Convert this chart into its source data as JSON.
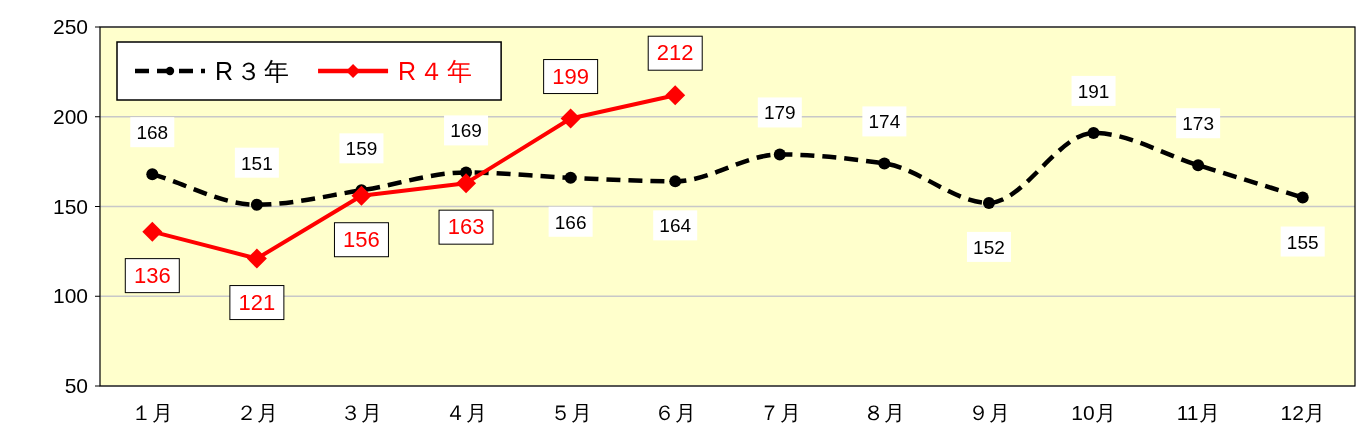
{
  "chart_data": {
    "type": "line",
    "categories": [
      "１月",
      "２月",
      "３月",
      "４月",
      "５月",
      "６月",
      "７月",
      "８月",
      "９月",
      "10月",
      "11月",
      "12月"
    ],
    "ylim": [
      50,
      250
    ],
    "yticks": [
      50,
      100,
      150,
      200,
      250
    ],
    "grid": "y",
    "legend": "top left",
    "data_labels": true,
    "series": [
      {
        "name": "R３年",
        "color": "#000000",
        "line_style": "dashed",
        "marker": "circle",
        "values": [
          168,
          151,
          159,
          169,
          166,
          164,
          179,
          174,
          152,
          191,
          173,
          155
        ]
      },
      {
        "name": "R４年",
        "color": "#ff0000",
        "line_style": "solid",
        "marker": "diamond",
        "values": [
          136,
          121,
          156,
          163,
          199,
          212,
          null,
          null,
          null,
          null,
          null,
          null
        ]
      }
    ]
  }
}
